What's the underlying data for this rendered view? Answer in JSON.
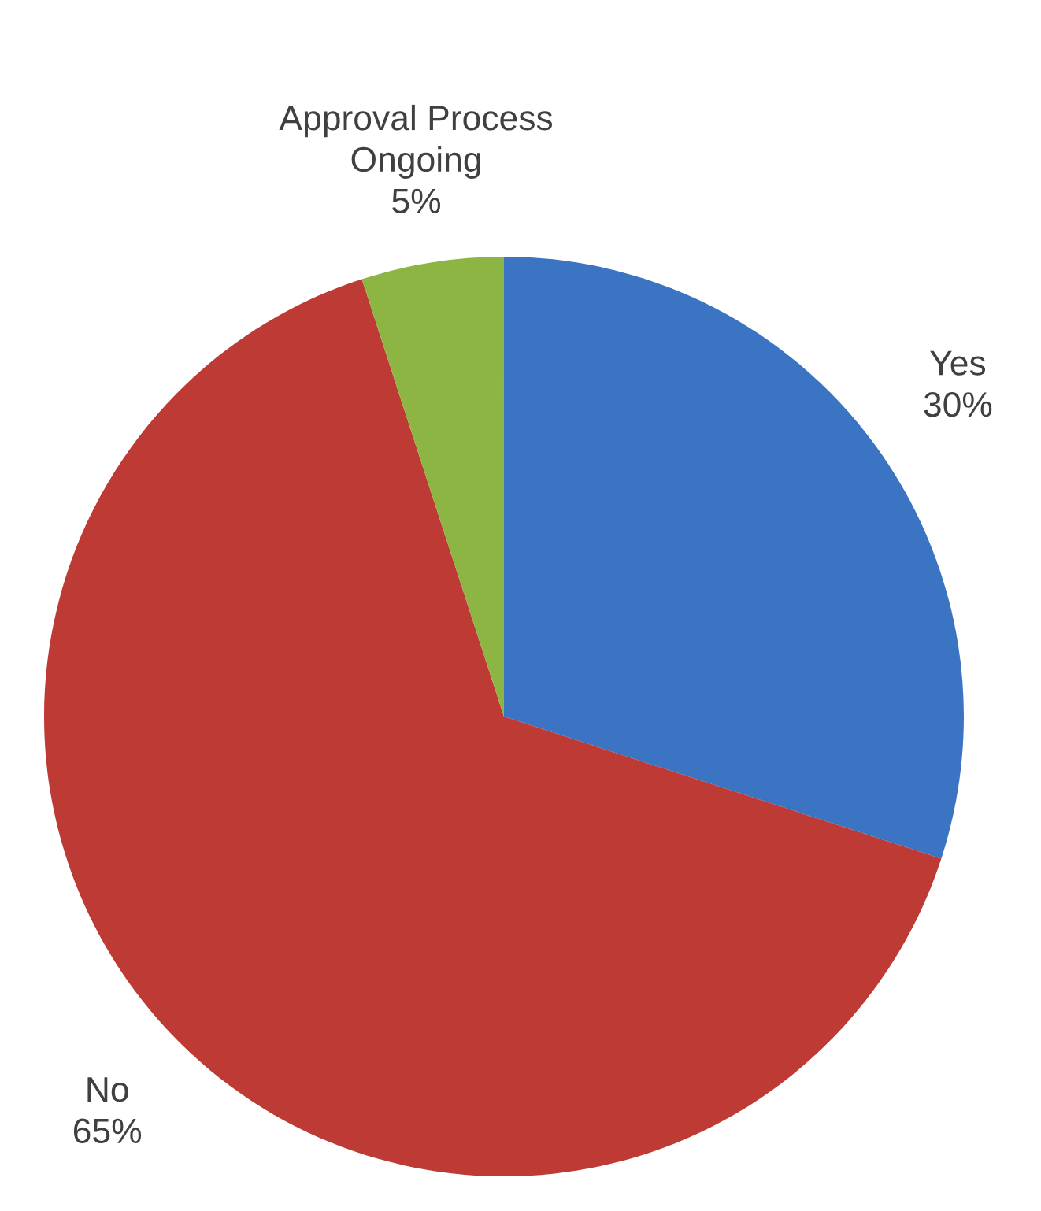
{
  "chart_data": {
    "type": "pie",
    "categories": [
      "Yes",
      "No",
      "Approval Process Ongoing"
    ],
    "values": [
      30,
      65,
      5
    ],
    "colors": [
      "#3b74c2",
      "#bd3a35",
      "#8db543"
    ],
    "value_labels": [
      "30%",
      "65%",
      "5%"
    ]
  }
}
